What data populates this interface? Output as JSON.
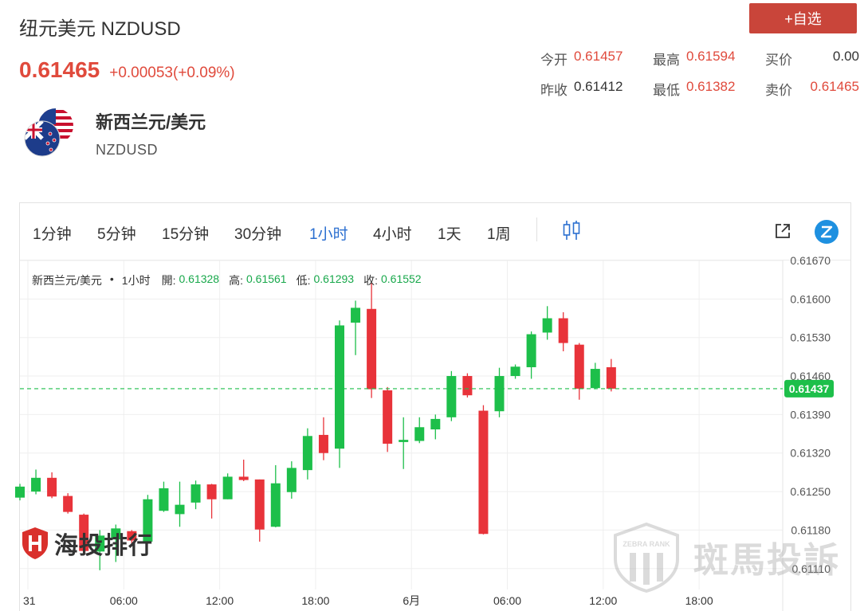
{
  "header": {
    "title": "纽元美元 NZDUSD",
    "price": "0.61465",
    "change": "+0.00053(+0.09%)",
    "add_button": "+自选"
  },
  "stats": [
    [
      {
        "label": "今开",
        "value": "0.61457"
      },
      {
        "label": "最高",
        "value": "0.61594"
      },
      {
        "label": "买价",
        "value": "0.00"
      }
    ],
    [
      {
        "label": "昨收",
        "value": "0.61412"
      },
      {
        "label": "最低",
        "value": "0.61382"
      },
      {
        "label": "卖价",
        "value": "0.61465"
      }
    ]
  ],
  "pair": {
    "name": "新西兰元/美元",
    "code": "NZDUSD"
  },
  "timeframes": [
    "1分钟",
    "5分钟",
    "15分钟",
    "30分钟",
    "1小时",
    "4小时",
    "1天",
    "1周"
  ],
  "active_timeframe": "1小时",
  "legend": {
    "pair": "新西兰元/美元",
    "interval": "1小时",
    "open_label": "開:",
    "open": "0.61328",
    "high_label": "高:",
    "high": "0.61561",
    "low_label": "低:",
    "low": "0.61293",
    "close_label": "收:",
    "close": "0.61552"
  },
  "watermarks": {
    "left": "海投排行",
    "right": "斑馬投訴",
    "right_badge": "ZEBRA RANK"
  },
  "colors": {
    "up": "#1dbf4a",
    "down": "#e8333a",
    "accent": "#2b6fd0",
    "price": "#e04a3c",
    "current_tag": "#1dbf4a"
  },
  "chart_data": {
    "type": "candlestick",
    "current_price": 0.61437,
    "current_price_label": "0.61437",
    "y_ticks": [
      "0.61670",
      "0.61600",
      "0.61530",
      "0.61460",
      "0.61390",
      "0.61320",
      "0.61250",
      "0.61180",
      "0.61110"
    ],
    "ylim": [
      0.61072,
      0.6167
    ],
    "x_ticks": [
      {
        "label": "31",
        "slot": 0.5
      },
      {
        "label": "06:00",
        "slot": 6.5
      },
      {
        "label": "12:00",
        "slot": 12.5
      },
      {
        "label": "18:00",
        "slot": 18.5
      },
      {
        "label": "6月",
        "slot": 24.5
      },
      {
        "label": "06:00",
        "slot": 30.5
      },
      {
        "label": "12:00",
        "slot": 36.5
      },
      {
        "label": "18:00",
        "slot": 42.5
      }
    ],
    "x_slots": 48,
    "grid": true,
    "candles": [
      {
        "o": 0.61239,
        "h": 0.61264,
        "l": 0.61234,
        "c": 0.61259
      },
      {
        "o": 0.6125,
        "h": 0.6129,
        "l": 0.61245,
        "c": 0.61275
      },
      {
        "o": 0.61275,
        "h": 0.61285,
        "l": 0.61238,
        "c": 0.61241
      },
      {
        "o": 0.61242,
        "h": 0.61247,
        "l": 0.6121,
        "c": 0.61213
      },
      {
        "o": 0.61208,
        "h": 0.6121,
        "l": 0.61136,
        "c": 0.61142
      },
      {
        "o": 0.61141,
        "h": 0.6118,
        "l": 0.61107,
        "c": 0.6117
      },
      {
        "o": 0.61163,
        "h": 0.6119,
        "l": 0.61122,
        "c": 0.61183
      },
      {
        "o": 0.61178,
        "h": 0.6118,
        "l": 0.61153,
        "c": 0.61161
      },
      {
        "o": 0.61159,
        "h": 0.61244,
        "l": 0.61159,
        "c": 0.61236
      },
      {
        "o": 0.61215,
        "h": 0.61268,
        "l": 0.61213,
        "c": 0.61256
      },
      {
        "o": 0.61209,
        "h": 0.61268,
        "l": 0.61186,
        "c": 0.61226
      },
      {
        "o": 0.6123,
        "h": 0.6127,
        "l": 0.61218,
        "c": 0.61263
      },
      {
        "o": 0.61263,
        "h": 0.61264,
        "l": 0.61201,
        "c": 0.61236
      },
      {
        "o": 0.61236,
        "h": 0.61283,
        "l": 0.61236,
        "c": 0.61277
      },
      {
        "o": 0.61277,
        "h": 0.61308,
        "l": 0.61269,
        "c": 0.61271
      },
      {
        "o": 0.61272,
        "h": 0.61272,
        "l": 0.61159,
        "c": 0.61181
      },
      {
        "o": 0.61186,
        "h": 0.61298,
        "l": 0.61185,
        "c": 0.61265
      },
      {
        "o": 0.61249,
        "h": 0.61305,
        "l": 0.61237,
        "c": 0.61293
      },
      {
        "o": 0.61289,
        "h": 0.61365,
        "l": 0.61272,
        "c": 0.61351
      },
      {
        "o": 0.61353,
        "h": 0.61385,
        "l": 0.61307,
        "c": 0.6132
      },
      {
        "o": 0.61328,
        "h": 0.61561,
        "l": 0.61293,
        "c": 0.61552
      },
      {
        "o": 0.61557,
        "h": 0.61597,
        "l": 0.61498,
        "c": 0.61584
      },
      {
        "o": 0.61582,
        "h": 0.6163,
        "l": 0.6142,
        "c": 0.61436
      },
      {
        "o": 0.61434,
        "h": 0.6144,
        "l": 0.61322,
        "c": 0.61337
      },
      {
        "o": 0.6134,
        "h": 0.61385,
        "l": 0.61291,
        "c": 0.61344
      },
      {
        "o": 0.61342,
        "h": 0.61385,
        "l": 0.61338,
        "c": 0.61367
      },
      {
        "o": 0.61363,
        "h": 0.6139,
        "l": 0.61345,
        "c": 0.61382
      },
      {
        "o": 0.61385,
        "h": 0.61469,
        "l": 0.61378,
        "c": 0.6146
      },
      {
        "o": 0.6146,
        "h": 0.61465,
        "l": 0.61421,
        "c": 0.61425
      },
      {
        "o": 0.61397,
        "h": 0.61407,
        "l": 0.61172,
        "c": 0.61173
      },
      {
        "o": 0.61396,
        "h": 0.61475,
        "l": 0.61385,
        "c": 0.6146
      },
      {
        "o": 0.6146,
        "h": 0.61481,
        "l": 0.61455,
        "c": 0.61477
      },
      {
        "o": 0.61476,
        "h": 0.61541,
        "l": 0.61455,
        "c": 0.61536
      },
      {
        "o": 0.61539,
        "h": 0.61587,
        "l": 0.61526,
        "c": 0.61565
      },
      {
        "o": 0.61565,
        "h": 0.61576,
        "l": 0.61505,
        "c": 0.6152
      },
      {
        "o": 0.61517,
        "h": 0.6152,
        "l": 0.61417,
        "c": 0.61437
      },
      {
        "o": 0.61438,
        "h": 0.61484,
        "l": 0.61436,
        "c": 0.61473
      },
      {
        "o": 0.61476,
        "h": 0.61491,
        "l": 0.61432,
        "c": 0.61437
      }
    ]
  }
}
